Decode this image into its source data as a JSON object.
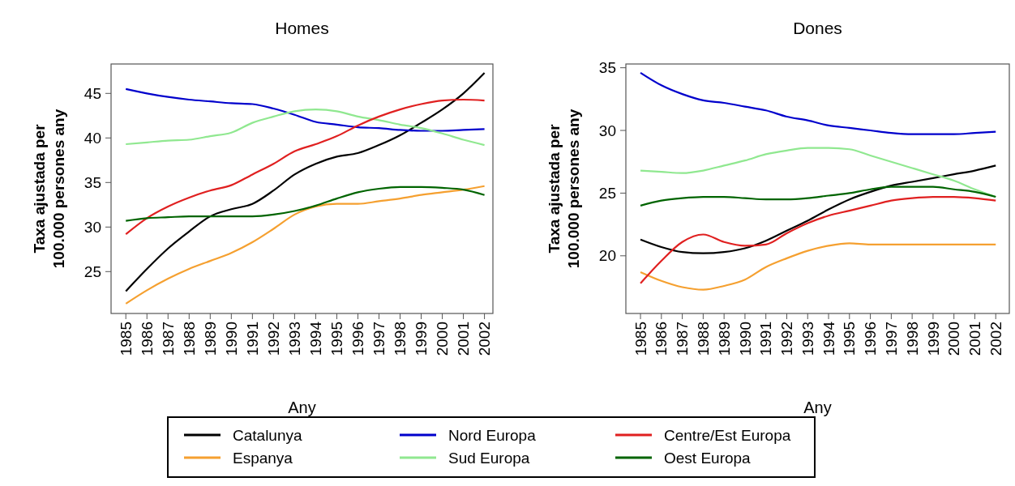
{
  "chart_data": [
    {
      "type": "line",
      "title": "Homes",
      "xlabel": "Any",
      "ylabel": "Taxa ajustada per\n100.000 persones any",
      "x": [
        1985,
        1986,
        1987,
        1988,
        1989,
        1990,
        1991,
        1992,
        1993,
        1994,
        1995,
        1996,
        1997,
        1998,
        1999,
        2000,
        2001,
        2002
      ],
      "xlim": [
        1984.3,
        2002.4
      ],
      "xticks": [
        1985,
        1986,
        1987,
        1988,
        1989,
        1990,
        1991,
        1992,
        1993,
        1994,
        1995,
        1996,
        1997,
        1998,
        1999,
        2000,
        2001,
        2002
      ],
      "ylim": [
        20.3,
        48.3
      ],
      "yticks": [
        25,
        30,
        35,
        40,
        45
      ],
      "grid": false,
      "legend": "bottom",
      "series": [
        {
          "name": "Catalunya",
          "color": "#000000",
          "values": [
            22.8,
            25.3,
            27.6,
            29.5,
            31.2,
            32.0,
            32.6,
            34.1,
            35.9,
            37.1,
            37.9,
            38.3,
            39.2,
            40.3,
            41.7,
            43.2,
            45.0,
            47.3
          ]
        },
        {
          "name": "Espanya",
          "color": "#f5a030",
          "values": [
            21.4,
            22.9,
            24.2,
            25.3,
            26.2,
            27.1,
            28.3,
            29.8,
            31.4,
            32.3,
            32.6,
            32.6,
            32.9,
            33.2,
            33.6,
            33.9,
            34.2,
            34.6
          ]
        },
        {
          "name": "Nord Europa",
          "color": "#0000cc",
          "values": [
            45.5,
            45.0,
            44.6,
            44.3,
            44.1,
            43.9,
            43.8,
            43.3,
            42.6,
            41.8,
            41.5,
            41.2,
            41.1,
            40.9,
            40.8,
            40.8,
            40.9,
            41.0
          ]
        },
        {
          "name": "Sud Europa",
          "color": "#90e890",
          "values": [
            39.3,
            39.5,
            39.7,
            39.8,
            40.2,
            40.6,
            41.7,
            42.4,
            43.0,
            43.2,
            43.0,
            42.4,
            42.0,
            41.5,
            41.1,
            40.5,
            39.8,
            39.2
          ]
        },
        {
          "name": "Centre/Est Europa",
          "color": "#e02020",
          "values": [
            29.2,
            31.0,
            32.3,
            33.3,
            34.1,
            34.7,
            35.9,
            37.1,
            38.5,
            39.3,
            40.2,
            41.4,
            42.4,
            43.2,
            43.8,
            44.2,
            44.3,
            44.2
          ]
        },
        {
          "name": "Oest Europa",
          "color": "#006400",
          "values": [
            30.7,
            31.0,
            31.1,
            31.2,
            31.2,
            31.2,
            31.2,
            31.4,
            31.8,
            32.4,
            33.2,
            33.9,
            34.3,
            34.5,
            34.5,
            34.4,
            34.2,
            33.6
          ]
        }
      ]
    },
    {
      "type": "line",
      "title": "Dones",
      "xlabel": "Any",
      "ylabel": "Taxa ajustada per\n100.000 persones any",
      "x": [
        1985,
        1986,
        1987,
        1988,
        1989,
        1990,
        1991,
        1992,
        1993,
        1994,
        1995,
        1996,
        1997,
        1998,
        1999,
        2000,
        2001,
        2002
      ],
      "xlim": [
        1984.3,
        2002.65
      ],
      "xticks": [
        1985,
        1986,
        1987,
        1988,
        1989,
        1990,
        1991,
        1992,
        1993,
        1994,
        1995,
        1996,
        1997,
        1998,
        1999,
        2000,
        2001,
        2002
      ],
      "ylim": [
        15.4,
        35.3
      ],
      "yticks": [
        20,
        25,
        30,
        35
      ],
      "grid": false,
      "series": [
        {
          "color": "#000000",
          "values": [
            21.3,
            20.7,
            20.3,
            20.2,
            20.3,
            20.6,
            21.2,
            22.0,
            22.8,
            23.7,
            24.5,
            25.1,
            25.6,
            25.9,
            26.2,
            26.5,
            26.8,
            27.2
          ]
        },
        {
          "color": "#f5a030",
          "values": [
            18.7,
            18.0,
            17.5,
            17.3,
            17.6,
            18.1,
            19.1,
            19.8,
            20.4,
            20.8,
            21.0,
            20.9,
            20.9,
            20.9,
            20.9,
            20.9,
            20.9,
            20.9
          ]
        },
        {
          "color": "#0000cc",
          "values": [
            34.6,
            33.6,
            32.9,
            32.4,
            32.2,
            31.9,
            31.6,
            31.1,
            30.8,
            30.4,
            30.2,
            30.0,
            29.8,
            29.7,
            29.7,
            29.7,
            29.8,
            29.9
          ]
        },
        {
          "color": "#90e890",
          "values": [
            26.8,
            26.7,
            26.6,
            26.8,
            27.2,
            27.6,
            28.1,
            28.4,
            28.6,
            28.6,
            28.5,
            28.0,
            27.5,
            27.0,
            26.5,
            26.0,
            25.3,
            24.7
          ]
        },
        {
          "color": "#e02020",
          "values": [
            17.8,
            19.6,
            21.1,
            21.7,
            21.1,
            20.8,
            20.9,
            21.8,
            22.6,
            23.2,
            23.6,
            24.0,
            24.4,
            24.6,
            24.7,
            24.7,
            24.6,
            24.4
          ]
        },
        {
          "color": "#006400",
          "values": [
            24.0,
            24.4,
            24.6,
            24.7,
            24.7,
            24.6,
            24.5,
            24.5,
            24.6,
            24.8,
            25.0,
            25.3,
            25.5,
            25.5,
            25.5,
            25.3,
            25.1,
            24.7
          ]
        }
      ]
    }
  ]
}
